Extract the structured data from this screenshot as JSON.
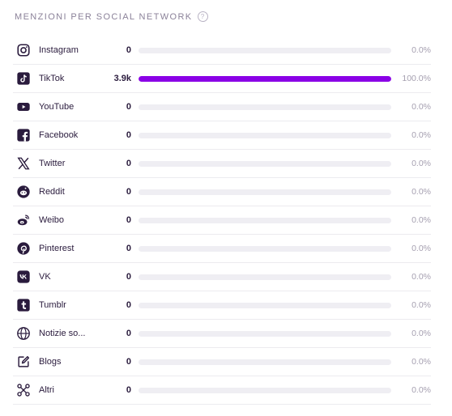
{
  "header": {
    "title": "MENZIONI PER SOCIAL NETWORK",
    "help": "?"
  },
  "accent_color": "#8a00e6",
  "rows": [
    {
      "name": "Instagram",
      "icon": "instagram-icon",
      "count": "0",
      "fraction": 0,
      "percent": "0.0%"
    },
    {
      "name": "TikTok",
      "icon": "tiktok-icon",
      "count": "3.9k",
      "fraction": 1,
      "percent": "100.0%"
    },
    {
      "name": "YouTube",
      "icon": "youtube-icon",
      "count": "0",
      "fraction": 0,
      "percent": "0.0%"
    },
    {
      "name": "Facebook",
      "icon": "facebook-icon",
      "count": "0",
      "fraction": 0,
      "percent": "0.0%"
    },
    {
      "name": "Twitter",
      "icon": "x-twitter-icon",
      "count": "0",
      "fraction": 0,
      "percent": "0.0%"
    },
    {
      "name": "Reddit",
      "icon": "reddit-icon",
      "count": "0",
      "fraction": 0,
      "percent": "0.0%"
    },
    {
      "name": "Weibo",
      "icon": "weibo-icon",
      "count": "0",
      "fraction": 0,
      "percent": "0.0%"
    },
    {
      "name": "Pinterest",
      "icon": "pinterest-icon",
      "count": "0",
      "fraction": 0,
      "percent": "0.0%"
    },
    {
      "name": "VK",
      "icon": "vk-icon",
      "count": "0",
      "fraction": 0,
      "percent": "0.0%"
    },
    {
      "name": "Tumblr",
      "icon": "tumblr-icon",
      "count": "0",
      "fraction": 0,
      "percent": "0.0%"
    },
    {
      "name": "Notizie so...",
      "icon": "globe-icon",
      "count": "0",
      "fraction": 0,
      "percent": "0.0%"
    },
    {
      "name": "Blogs",
      "icon": "edit-icon",
      "count": "0",
      "fraction": 0,
      "percent": "0.0%"
    },
    {
      "name": "Altri",
      "icon": "network-icon",
      "count": "0",
      "fraction": 0,
      "percent": "0.0%"
    }
  ]
}
